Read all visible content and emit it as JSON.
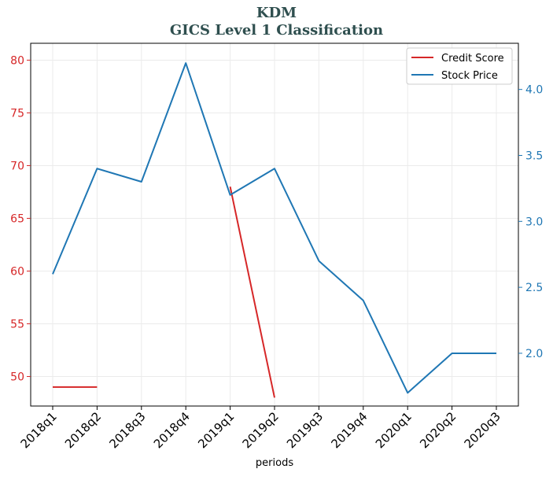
{
  "chart_data": {
    "type": "line",
    "title": "KDM",
    "subtitle": "GICS Level 1 Classification",
    "xlabel": "periods",
    "ylabel_left": "",
    "ylabel_right": "",
    "categories": [
      "2018q1",
      "2018q2",
      "2018q3",
      "2018q4",
      "2019q1",
      "2019q2",
      "2019q3",
      "2019q4",
      "2020q1",
      "2020q2",
      "2020q3"
    ],
    "series": [
      {
        "name": "Credit Score",
        "axis": "left",
        "color": "#d62728",
        "values": [
          49,
          49,
          null,
          null,
          68,
          48,
          null,
          null,
          null,
          null,
          null
        ]
      },
      {
        "name": "Stock Price",
        "axis": "right",
        "color": "#1f77b4",
        "values": [
          2.6,
          3.4,
          3.3,
          4.2,
          3.2,
          3.4,
          2.7,
          2.4,
          1.7,
          2.0,
          2.0
        ]
      }
    ],
    "ylim_left": [
      47.2,
      81.6
    ],
    "ylim_right": [
      1.6,
      4.35
    ],
    "yticks_left": [
      50,
      55,
      60,
      65,
      70,
      75,
      80
    ],
    "yticks_right": [
      2.0,
      2.5,
      3.0,
      3.5,
      4.0
    ],
    "left_axis_color": "#d62728",
    "right_axis_color": "#1f77b4",
    "grid": true,
    "legend_position": "top-right"
  }
}
